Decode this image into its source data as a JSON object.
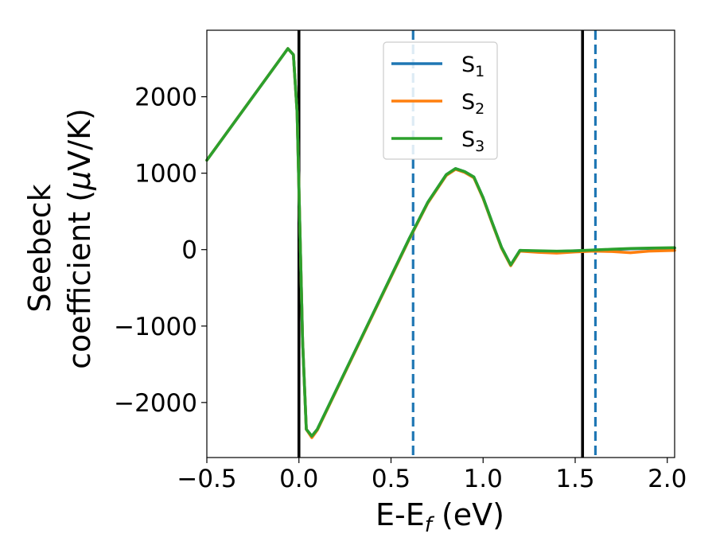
{
  "chart_data": {
    "type": "line",
    "xlabel": {
      "main": "E-E",
      "sub": "f",
      "tail": " (eV)"
    },
    "ylabel": {
      "line1": "Seebeck",
      "line2_pre": "coefficient  (",
      "mu": "μ",
      "line2_post": "V/K)"
    },
    "xlim": [
      -0.5,
      2.04
    ],
    "ylim": [
      -2720,
      2870
    ],
    "xticks": [
      -0.5,
      0.0,
      0.5,
      1.0,
      1.5,
      2.0
    ],
    "xtick_labels": [
      "−0.5",
      "0.0",
      "0.5",
      "1.0",
      "1.5",
      "2.0"
    ],
    "yticks": [
      -2000,
      -1000,
      0,
      1000,
      2000
    ],
    "ytick_labels": [
      "−2000",
      "−1000",
      "0",
      "1000",
      "2000"
    ],
    "grid": false,
    "legend_position": "top-center",
    "vlines": [
      {
        "x": 0.0,
        "style": "solid",
        "color": "#000000"
      },
      {
        "x": 1.54,
        "style": "solid",
        "color": "#000000"
      },
      {
        "x": 0.62,
        "style": "dashed",
        "color": "#1f77b4"
      },
      {
        "x": 1.61,
        "style": "dashed",
        "color": "#1f77b4"
      }
    ],
    "series": [
      {
        "name": "S",
        "sub": "1",
        "color": "#1f77b4",
        "x": [
          -0.5,
          -0.06,
          -0.03,
          -0.01,
          0.0,
          0.02,
          0.04,
          0.07,
          0.1,
          0.2,
          0.3,
          0.4,
          0.5,
          0.6,
          0.7,
          0.8,
          0.85,
          0.9,
          0.95,
          1.0,
          1.05,
          1.1,
          1.15,
          1.2,
          1.3,
          1.4,
          1.5,
          1.6,
          1.7,
          1.8,
          1.9,
          2.04
        ],
        "y": [
          1170,
          2630,
          2550,
          1800,
          800,
          -1200,
          -2350,
          -2440,
          -2350,
          -1850,
          -1350,
          -850,
          -350,
          150,
          620,
          980,
          1060,
          1020,
          950,
          680,
          350,
          30,
          -200,
          -10,
          -20,
          -25,
          -15,
          -10,
          0,
          10,
          15,
          20
        ]
      },
      {
        "name": "S",
        "sub": "2",
        "color": "#ff7f0e",
        "x": [
          -0.5,
          -0.06,
          -0.03,
          -0.01,
          0.0,
          0.02,
          0.04,
          0.07,
          0.1,
          0.2,
          0.3,
          0.4,
          0.5,
          0.6,
          0.7,
          0.8,
          0.85,
          0.9,
          0.95,
          1.0,
          1.05,
          1.1,
          1.15,
          1.2,
          1.3,
          1.4,
          1.5,
          1.6,
          1.7,
          1.8,
          1.9,
          2.04
        ],
        "y": [
          1170,
          2630,
          2550,
          1800,
          800,
          -1200,
          -2350,
          -2460,
          -2360,
          -1860,
          -1360,
          -860,
          -360,
          140,
          610,
          970,
          1050,
          1010,
          940,
          670,
          340,
          20,
          -210,
          -20,
          -35,
          -45,
          -30,
          -20,
          -25,
          -40,
          -20,
          -10
        ]
      },
      {
        "name": "S",
        "sub": "3",
        "color": "#2ca02c",
        "x": [
          -0.5,
          -0.06,
          -0.03,
          -0.01,
          0.0,
          0.02,
          0.04,
          0.07,
          0.1,
          0.2,
          0.3,
          0.4,
          0.5,
          0.6,
          0.7,
          0.8,
          0.85,
          0.9,
          0.95,
          1.0,
          1.05,
          1.1,
          1.15,
          1.2,
          1.3,
          1.4,
          1.5,
          1.6,
          1.7,
          1.8,
          1.9,
          2.04
        ],
        "y": [
          1170,
          2630,
          2550,
          1800,
          800,
          -1200,
          -2350,
          -2440,
          -2350,
          -1850,
          -1350,
          -850,
          -350,
          150,
          620,
          980,
          1060,
          1020,
          950,
          680,
          350,
          30,
          -200,
          -10,
          -15,
          -20,
          -15,
          -5,
          5,
          15,
          20,
          25
        ]
      }
    ]
  }
}
